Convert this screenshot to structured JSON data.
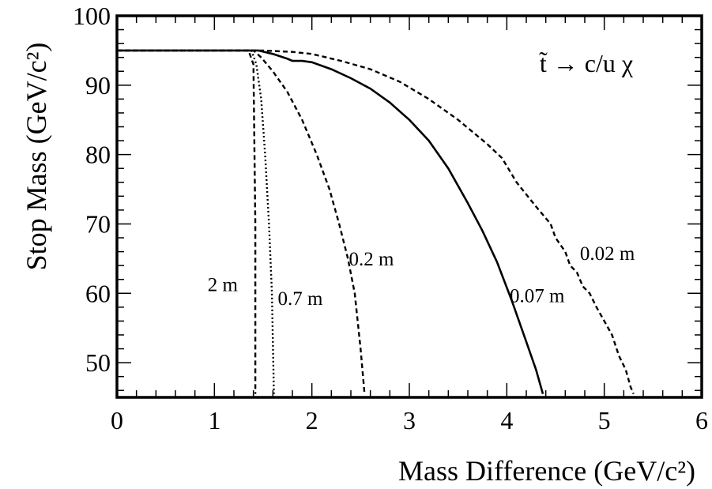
{
  "chart_data": {
    "type": "line",
    "xlabel": "Mass Difference (GeV/c²)",
    "ylabel": "Stop Mass (GeV/c²)",
    "xlim": [
      0,
      6
    ],
    "ylim": [
      45,
      100
    ],
    "xticks": [
      "0",
      "1",
      "2",
      "3",
      "4",
      "5",
      "6"
    ],
    "yticks": [
      "50",
      "60",
      "70",
      "80",
      "90",
      "100"
    ],
    "annotation": "t̃ → c/u χ",
    "grid": false,
    "series": [
      {
        "name": "2 m",
        "style": "dashed",
        "x": [
          0,
          1.35,
          1.4,
          1.42,
          1.42
        ],
        "y": [
          95,
          95,
          93,
          70,
          45.5
        ]
      },
      {
        "name": "0.7 m",
        "style": "dotted",
        "x": [
          0,
          1.38,
          1.43,
          1.48,
          1.52,
          1.56,
          1.59,
          1.61
        ],
        "y": [
          95,
          95,
          93,
          88,
          80,
          70,
          60,
          45.5
        ]
      },
      {
        "name": "0.2 m",
        "style": "dashed",
        "x": [
          0,
          1.4,
          1.48,
          1.6,
          1.75,
          1.9,
          2.05,
          2.18,
          2.28,
          2.37,
          2.44,
          2.5,
          2.54
        ],
        "y": [
          95,
          95,
          94,
          92,
          89,
          85,
          80,
          75,
          70,
          65,
          60,
          52,
          45.5
        ]
      },
      {
        "name": "0.07 m",
        "style": "solid",
        "x": [
          0,
          1.45,
          1.6,
          1.75,
          1.8,
          1.9,
          2.0,
          2.2,
          2.4,
          2.6,
          2.8,
          3.0,
          3.2,
          3.4,
          3.6,
          3.75,
          3.9,
          4.05,
          4.2,
          4.3,
          4.37
        ],
        "y": [
          95,
          95,
          94.5,
          93.8,
          93.5,
          93.5,
          93.3,
          92.3,
          91,
          89.5,
          87.5,
          85,
          82,
          78,
          73,
          69,
          64.5,
          59,
          53,
          49,
          45.5
        ]
      },
      {
        "name": "0.02 m",
        "style": "dashed",
        "x": [
          0,
          1.5,
          1.8,
          2.0,
          2.3,
          2.6,
          2.9,
          3.2,
          3.5,
          3.8,
          3.95,
          4.1,
          4.3,
          4.45,
          4.5,
          4.6,
          4.65,
          4.72,
          4.78,
          4.85,
          4.92,
          5.0,
          5.08,
          5.15,
          5.22,
          5.27,
          5.3
        ],
        "y": [
          95,
          95,
          94.8,
          94.5,
          93.5,
          92.3,
          90.5,
          88,
          85,
          81.5,
          79.5,
          76,
          72.5,
          70,
          68,
          66,
          64,
          63,
          61,
          60,
          58,
          56,
          54,
          51,
          49,
          46.5,
          45.5
        ]
      }
    ]
  }
}
